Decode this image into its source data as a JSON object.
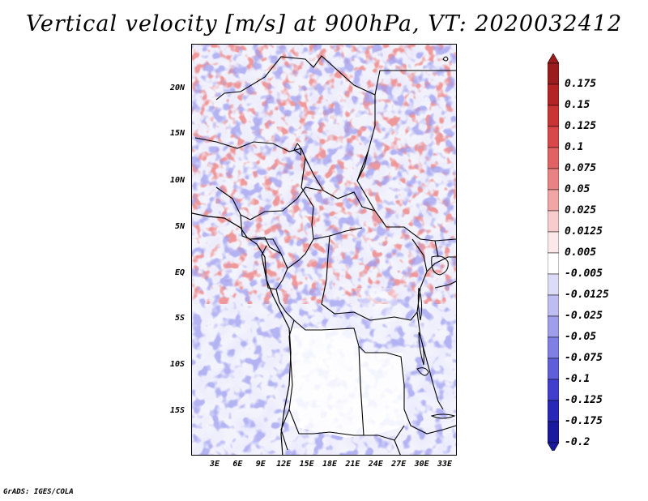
{
  "title": "Vertical velocity [m/s] at 900hPa, VT: 2020032412",
  "footer": "GrADS: IGES/COLA",
  "map": {
    "region": "Central Africa",
    "lat_labels": [
      "20N",
      "15N",
      "10N",
      "5N",
      "EQ",
      "5S",
      "10S",
      "15S"
    ],
    "lon_labels": [
      "3E",
      "6E",
      "9E",
      "12E",
      "15E",
      "18E",
      "21E",
      "24E",
      "27E",
      "30E",
      "33E"
    ]
  },
  "colorbar": {
    "labels": [
      "0.175",
      "0.15",
      "0.125",
      "0.1",
      "0.075",
      "0.05",
      "0.025",
      "0.0125",
      "0.005",
      "-0.005",
      "-0.0125",
      "-0.025",
      "-0.05",
      "-0.075",
      "-0.1",
      "-0.125",
      "-0.175",
      "-0.2"
    ],
    "colors": [
      "#9b1c1c",
      "#b52424",
      "#c93434",
      "#d84848",
      "#e06262",
      "#e98282",
      "#f2a5a5",
      "#f8cccc",
      "#fce8e8",
      "#ffffff",
      "#dcdcf8",
      "#bdbdf2",
      "#9e9eeb",
      "#7f7fe4",
      "#5f5fd9",
      "#4040cc",
      "#2828b8",
      "#1a1a9e"
    ],
    "arrow_top_color": "#9b1c1c",
    "arrow_bottom_color": "#1a1a9e"
  }
}
